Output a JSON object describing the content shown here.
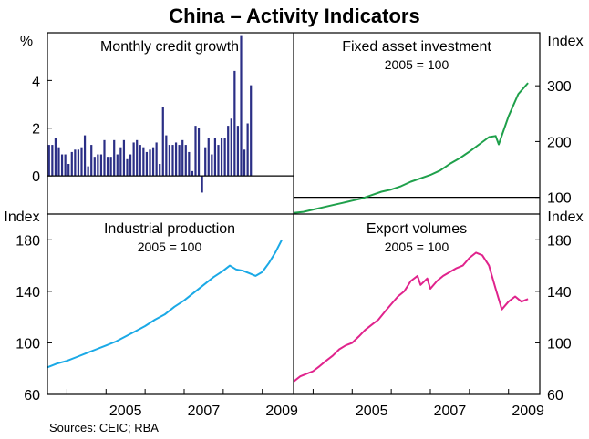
{
  "figure": {
    "title": "China – Activity Indicators",
    "source": "Sources: CEIC; RBA",
    "x_axis": {
      "range": [
        2003.5,
        2009.8
      ],
      "ticks": [
        2004,
        2005,
        2006,
        2007,
        2008,
        2009
      ],
      "labels": [
        {
          "value": 2005,
          "text": "2005"
        },
        {
          "value": 2007,
          "text": "2007"
        },
        {
          "value": 2009,
          "text": "2009"
        }
      ]
    }
  },
  "chart_data": [
    {
      "id": "credit",
      "type": "bar",
      "title": "Monthly credit growth",
      "subtitle": "",
      "unit_label": "%",
      "axis_side": "left",
      "color": "#2b2f86",
      "ylim": [
        -1.6,
        6.0
      ],
      "yticks": [
        0,
        2,
        4
      ],
      "start_year": 2003.5,
      "step": 0.08333,
      "values": [
        1.3,
        1.3,
        1.6,
        1.2,
        0.9,
        0.9,
        0.5,
        1.0,
        1.1,
        1.1,
        1.2,
        1.7,
        0.4,
        1.3,
        0.8,
        0.9,
        0.9,
        1.5,
        0.8,
        0.8,
        1.5,
        0.9,
        1.2,
        1.5,
        0.7,
        0.9,
        1.4,
        1.5,
        1.3,
        1.2,
        1.0,
        1.1,
        1.2,
        1.4,
        0.5,
        2.9,
        1.7,
        1.3,
        1.3,
        1.4,
        1.3,
        1.5,
        1.3,
        1.0,
        0.2,
        2.1,
        2.0,
        -0.7,
        1.2,
        1.6,
        0.9,
        1.6,
        1.3,
        1.6,
        1.6,
        2.1,
        2.4,
        4.4,
        2.1,
        5.9,
        1.1,
        2.2,
        3.8
      ]
    },
    {
      "id": "fai",
      "type": "line",
      "title": "Fixed asset investment",
      "subtitle": "2005 = 100",
      "unit_label": "Index",
      "axis_side": "right",
      "color": "#1fa04b",
      "ylim": [
        70,
        395
      ],
      "yticks": [
        100,
        200,
        300
      ],
      "x": [
        2003.5,
        2003.75,
        2004.0,
        2004.25,
        2004.5,
        2004.75,
        2005.0,
        2005.25,
        2005.5,
        2005.75,
        2006.0,
        2006.25,
        2006.5,
        2006.75,
        2007.0,
        2007.25,
        2007.5,
        2007.75,
        2008.0,
        2008.25,
        2008.5,
        2008.67,
        2008.75,
        2009.0,
        2009.25,
        2009.5
      ],
      "y": [
        72,
        74,
        78,
        82,
        86,
        90,
        94,
        98,
        104,
        110,
        114,
        120,
        128,
        134,
        140,
        148,
        160,
        170,
        182,
        195,
        208,
        210,
        195,
        245,
        285,
        305
      ]
    },
    {
      "id": "ip",
      "type": "line",
      "title": "Industrial production",
      "subtitle": "2005 = 100",
      "unit_label": "Index",
      "axis_side": "left",
      "color": "#1aa9e6",
      "ylim": [
        60,
        200
      ],
      "yticks": [
        60,
        100,
        140,
        180
      ],
      "x": [
        2003.5,
        2003.75,
        2004.0,
        2004.25,
        2004.5,
        2004.75,
        2005.0,
        2005.25,
        2005.5,
        2005.75,
        2006.0,
        2006.25,
        2006.5,
        2006.75,
        2007.0,
        2007.25,
        2007.5,
        2007.75,
        2008.0,
        2008.17,
        2008.33,
        2008.5,
        2008.67,
        2008.83,
        2009.0,
        2009.17,
        2009.33,
        2009.5
      ],
      "y": [
        81,
        84,
        86,
        89,
        92,
        95,
        98,
        101,
        105,
        109,
        113,
        118,
        122,
        128,
        133,
        139,
        145,
        151,
        156,
        160,
        157,
        156,
        154,
        152,
        155,
        162,
        170,
        180
      ]
    },
    {
      "id": "exports",
      "type": "line",
      "title": "Export volumes",
      "subtitle": "2005 = 100",
      "unit_label": "Index",
      "axis_side": "right",
      "color": "#e0238c",
      "ylim": [
        60,
        200
      ],
      "yticks": [
        60,
        100,
        140,
        180
      ],
      "x": [
        2003.5,
        2003.67,
        2003.83,
        2004.0,
        2004.17,
        2004.33,
        2004.5,
        2004.67,
        2004.83,
        2005.0,
        2005.17,
        2005.33,
        2005.5,
        2005.67,
        2005.83,
        2006.0,
        2006.17,
        2006.33,
        2006.5,
        2006.67,
        2006.75,
        2006.92,
        2007.0,
        2007.17,
        2007.33,
        2007.5,
        2007.67,
        2007.83,
        2008.0,
        2008.17,
        2008.33,
        2008.5,
        2008.67,
        2008.83,
        2009.0,
        2009.17,
        2009.33,
        2009.5
      ],
      "y": [
        70,
        74,
        76,
        78,
        82,
        86,
        90,
        95,
        98,
        100,
        105,
        110,
        114,
        118,
        124,
        130,
        136,
        140,
        148,
        152,
        145,
        150,
        142,
        148,
        152,
        155,
        158,
        160,
        166,
        170,
        168,
        160,
        142,
        126,
        132,
        136,
        132,
        134
      ]
    }
  ]
}
